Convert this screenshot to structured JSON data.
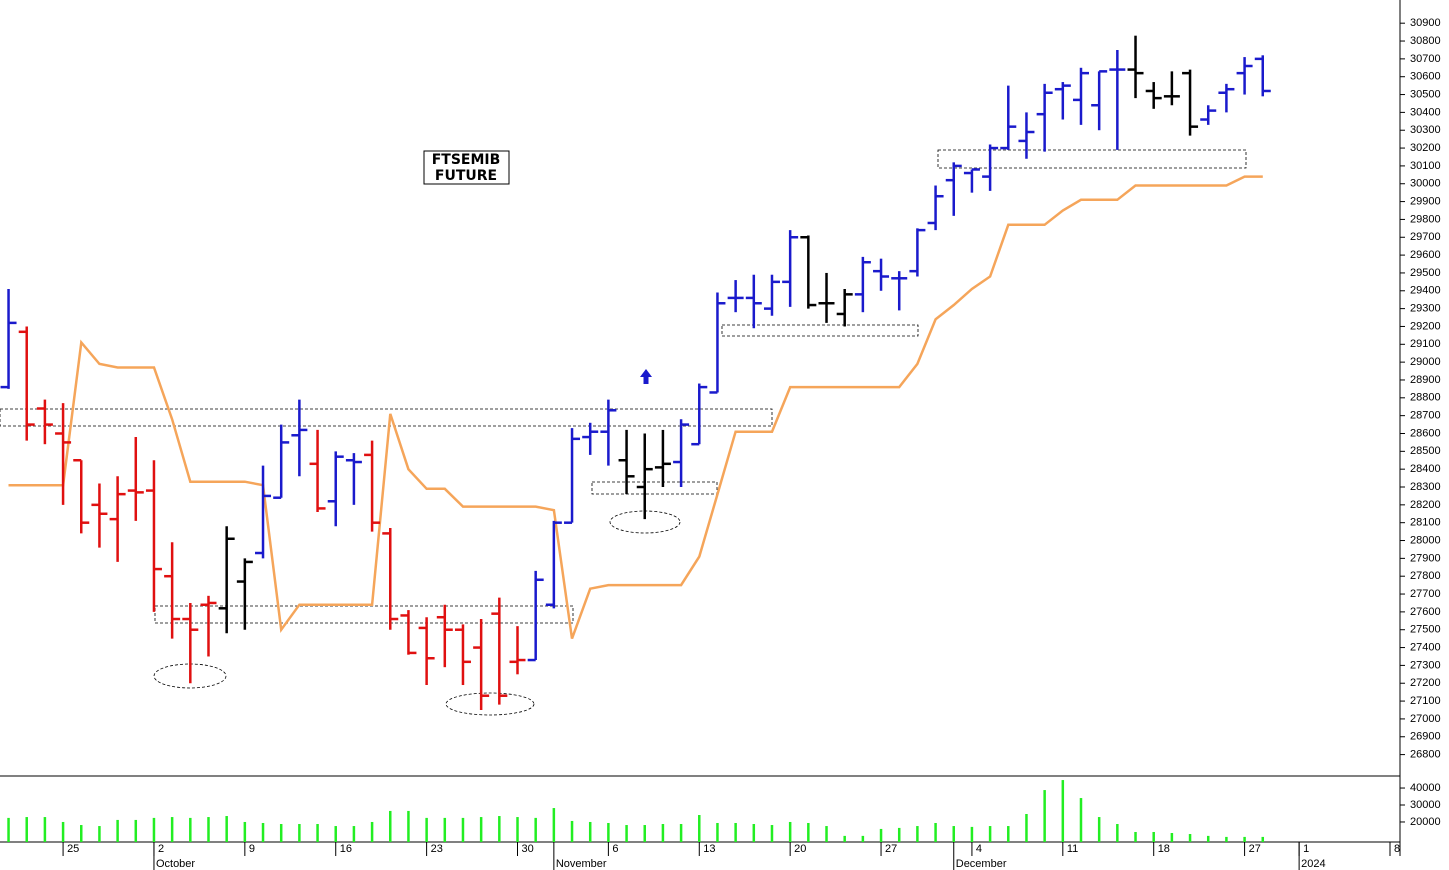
{
  "chart_data": [
    {
      "type": "ohlc",
      "title_lines": [
        "FTSEMIB",
        "FUTURE"
      ],
      "xlim": [
        -0.47,
        76.55
      ],
      "ylim": [
        26680,
        31030
      ],
      "yticks": [
        26800,
        26900,
        27000,
        27100,
        27200,
        27300,
        27400,
        27500,
        27600,
        27700,
        27800,
        27900,
        28000,
        28100,
        28200,
        28300,
        28400,
        28500,
        28600,
        28700,
        28800,
        28900,
        29000,
        29100,
        29200,
        29300,
        29400,
        29500,
        29600,
        29700,
        29800,
        29900,
        30000,
        30100,
        30200,
        30300,
        30400,
        30500,
        30600,
        30700,
        30800,
        30900
      ],
      "xticks": [
        {
          "value": 3,
          "label": "25"
        },
        {
          "value": 8,
          "label": "2"
        },
        {
          "value": 13,
          "label": "9"
        },
        {
          "value": 18,
          "label": "16"
        },
        {
          "value": 23,
          "label": "23"
        },
        {
          "value": 28,
          "label": "30"
        },
        {
          "value": 33,
          "label": "6"
        },
        {
          "value": 38,
          "label": "13"
        },
        {
          "value": 43,
          "label": "20"
        },
        {
          "value": 48,
          "label": "27"
        },
        {
          "value": 53,
          "label": "4"
        },
        {
          "value": 58,
          "label": "11"
        },
        {
          "value": 63,
          "label": "18"
        },
        {
          "value": 68,
          "label": "27"
        },
        {
          "value": 71,
          "label": "1"
        },
        {
          "value": 76,
          "label": "8"
        }
      ],
      "month_ticks": [
        {
          "value": 8,
          "label": "October"
        },
        {
          "value": 30,
          "label": "November"
        },
        {
          "value": 52,
          "label": "December"
        },
        {
          "value": 71,
          "label": "2024"
        }
      ],
      "open": [
        28860,
        29170,
        28740,
        28600,
        28450,
        28200,
        28120,
        28280,
        28280,
        27800,
        27560,
        27640,
        27620,
        27770,
        27930,
        28240,
        28590,
        28430,
        28220,
        28450,
        28480,
        28040,
        27580,
        27510,
        27570,
        27500,
        27400,
        27590,
        27320,
        27330,
        27640,
        28100,
        28580,
        28610,
        28450,
        28300,
        28410,
        28440,
        28540,
        28830,
        29360,
        29360,
        29300,
        29450,
        29700,
        29330,
        29270,
        29380,
        29510,
        29470,
        29510,
        29780,
        30020,
        30060,
        30040,
        30200,
        30240,
        30390,
        30530,
        30470,
        30440,
        30640,
        30640,
        30520,
        30490,
        30620,
        30360,
        30510,
        30620,
        30700
      ],
      "high": [
        29410,
        29200,
        28790,
        28770,
        28450,
        28320,
        28360,
        28580,
        28450,
        27990,
        27650,
        27690,
        28080,
        27900,
        28420,
        28650,
        28790,
        28620,
        28500,
        28490,
        28560,
        28070,
        27610,
        27570,
        27640,
        27530,
        27560,
        27680,
        27520,
        27830,
        28110,
        28630,
        28660,
        28790,
        28620,
        28600,
        28620,
        28680,
        28880,
        29390,
        29460,
        29490,
        29490,
        29740,
        29710,
        29500,
        29410,
        29590,
        29580,
        29510,
        29750,
        29990,
        30120,
        30080,
        30220,
        30550,
        30400,
        30560,
        30570,
        30650,
        30630,
        30750,
        30830,
        30570,
        30630,
        30640,
        30440,
        30560,
        30710,
        30720
      ],
      "low": [
        28850,
        28560,
        28540,
        28200,
        28040,
        27960,
        27880,
        28110,
        27600,
        27450,
        27200,
        27350,
        27480,
        27500,
        27900,
        28240,
        28360,
        28160,
        28080,
        28200,
        28050,
        27500,
        27360,
        27190,
        27290,
        27190,
        27050,
        27080,
        27250,
        27330,
        27620,
        28100,
        28480,
        28420,
        28260,
        28120,
        28300,
        28300,
        28540,
        28830,
        29280,
        29190,
        29260,
        29310,
        29300,
        29220,
        29200,
        29280,
        29400,
        29290,
        29480,
        29740,
        29820,
        29950,
        29960,
        30190,
        30140,
        30180,
        30360,
        30330,
        30300,
        30190,
        30480,
        30420,
        30440,
        30270,
        30330,
        30400,
        30500,
        30490
      ],
      "close": [
        29220,
        28650,
        28650,
        28550,
        28100,
        28150,
        28260,
        28270,
        27840,
        27560,
        27500,
        27650,
        28010,
        27880,
        28250,
        28550,
        28620,
        28180,
        28470,
        28440,
        28100,
        27560,
        27370,
        27340,
        27500,
        27320,
        27130,
        27130,
        27330,
        27780,
        28100,
        28570,
        28610,
        28730,
        28360,
        28400,
        28430,
        28650,
        28860,
        29330,
        29360,
        29330,
        29450,
        29700,
        29320,
        29330,
        29380,
        29560,
        29480,
        29470,
        29740,
        29930,
        30100,
        30080,
        30200,
        30320,
        30290,
        30510,
        30550,
        30620,
        30630,
        30640,
        30620,
        30480,
        30490,
        30320,
        30410,
        30530,
        30660,
        30520
      ],
      "colors": [
        "#1a1acc",
        "#e01010",
        "#e01010",
        "#e01010",
        "#e01010",
        "#e01010",
        "#e01010",
        "#e01010",
        "#e01010",
        "#e01010",
        "#e01010",
        "#e01010",
        "#000000",
        "#000000",
        "#1a1acc",
        "#1a1acc",
        "#1a1acc",
        "#e01010",
        "#1a1acc",
        "#1a1acc",
        "#e01010",
        "#e01010",
        "#e01010",
        "#e01010",
        "#e01010",
        "#e01010",
        "#e01010",
        "#e01010",
        "#e01010",
        "#1a1acc",
        "#1a1acc",
        "#1a1acc",
        "#1a1acc",
        "#1a1acc",
        "#000000",
        "#000000",
        "#000000",
        "#1a1acc",
        "#1a1acc",
        "#1a1acc",
        "#1a1acc",
        "#1a1acc",
        "#1a1acc",
        "#1a1acc",
        "#000000",
        "#000000",
        "#000000",
        "#1a1acc",
        "#1a1acc",
        "#1a1acc",
        "#1a1acc",
        "#1a1acc",
        "#1a1acc",
        "#1a1acc",
        "#1a1acc",
        "#1a1acc",
        "#1a1acc",
        "#1a1acc",
        "#1a1acc",
        "#1a1acc",
        "#1a1acc",
        "#1a1acc",
        "#000000",
        "#000000",
        "#000000",
        "#000000",
        "#1a1acc",
        "#1a1acc",
        "#1a1acc",
        "#1a1acc"
      ],
      "line": {
        "color": "#f5a55a",
        "values": [
          28310,
          28310,
          28310,
          28310,
          29110,
          28990,
          28970,
          28970,
          28970,
          28680,
          28330,
          28330,
          28330,
          28330,
          28310,
          27500,
          27640,
          27640,
          27640,
          27640,
          27640,
          28710,
          28400,
          28290,
          28290,
          28190,
          28190,
          28190,
          28190,
          28190,
          28170,
          27450,
          27730,
          27750,
          27750,
          27750,
          27750,
          27750,
          27910,
          28260,
          28610,
          28610,
          28610,
          28860,
          28860,
          28860,
          28860,
          28860,
          28860,
          28860,
          28990,
          29240,
          29320,
          29410,
          29480,
          29770,
          29770,
          29770,
          29850,
          29910,
          29910,
          29910,
          29990,
          29990,
          29990,
          29990,
          29990,
          29990,
          30040,
          30040
        ]
      }
    },
    {
      "type": "bar",
      "ylim": [
        8200,
        46500
      ],
      "yticks": [
        20000,
        30000,
        40000
      ],
      "color": "#22ee22",
      "values": [
        22400,
        22900,
        22900,
        20000,
        18200,
        17600,
        21200,
        21200,
        22400,
        22900,
        22400,
        22900,
        23500,
        20000,
        19400,
        18800,
        18800,
        18800,
        17600,
        17600,
        20000,
        26500,
        26500,
        22400,
        22400,
        22400,
        22900,
        23500,
        22900,
        22400,
        28200,
        20600,
        20000,
        19400,
        18200,
        18200,
        18800,
        18800,
        24100,
        19400,
        19400,
        18800,
        18200,
        20000,
        19400,
        17600,
        11800,
        11800,
        15900,
        16500,
        17600,
        19400,
        17600,
        17100,
        17600,
        17600,
        24700,
        38800,
        44700,
        34100,
        22900,
        18800,
        14100,
        14100,
        13500,
        12900,
        11800,
        11200,
        11200,
        11200
      ]
    }
  ]
}
